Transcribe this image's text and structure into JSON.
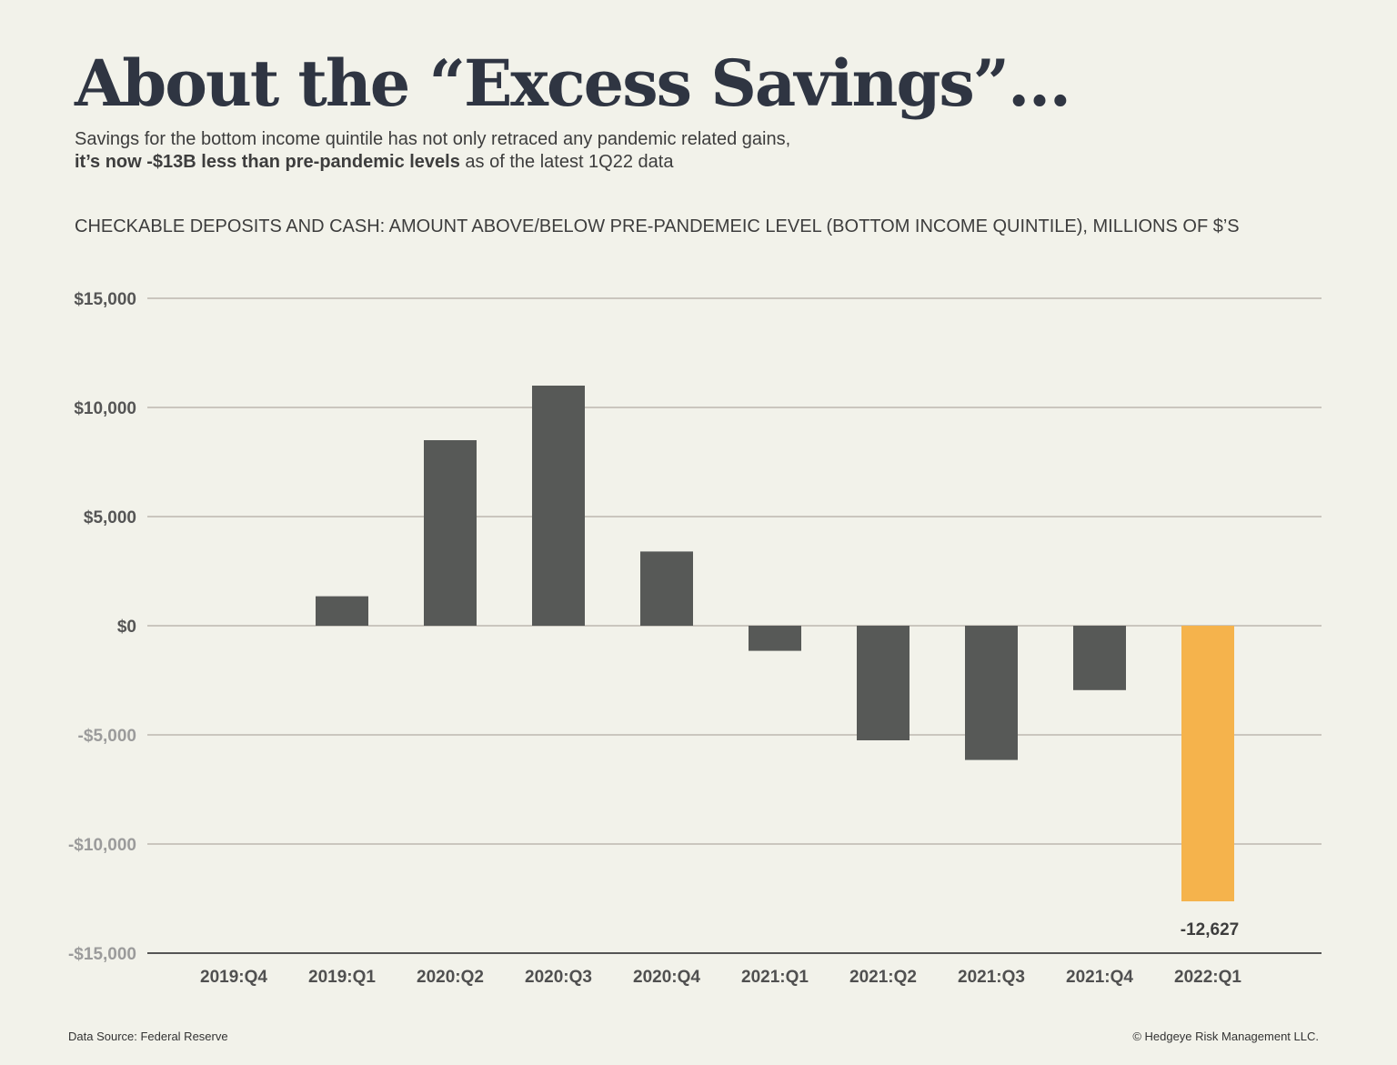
{
  "header": {
    "title": "About the “Excess Savings”…",
    "subtitle_line1": "Savings for the bottom income quintile has not only retraced any pandemic related gains,",
    "subtitle_bold": "it’s now -$13B less than pre-pandemic levels",
    "subtitle_rest": " as of the latest 1Q22 data"
  },
  "chart_heading": "CHECKABLE DEPOSITS AND CASH: AMOUNT ABOVE/BELOW PRE-PANDEMEIC LEVEL (BOTTOM INCOME QUINTILE), MILLIONS OF $’S",
  "chart_data": {
    "type": "bar",
    "categories": [
      "2019:Q4",
      "2019:Q1",
      "2020:Q2",
      "2020:Q3",
      "2020:Q4",
      "2021:Q1",
      "2021:Q2",
      "2021:Q3",
      "2021:Q4",
      "2022:Q1"
    ],
    "values": [
      0,
      1350,
      8500,
      11000,
      3400,
      -1150,
      -5250,
      -6150,
      -2950,
      -12627
    ],
    "ylim": [
      -15000,
      15000
    ],
    "yticks": [
      15000,
      10000,
      5000,
      0,
      -5000,
      -10000,
      -15000
    ],
    "ytick_labels": [
      "$15,000",
      "$10,000",
      "$5,000",
      "$0",
      "-$5,000",
      "-$10,000",
      "-$15,000"
    ],
    "highlight_index": 9,
    "data_labels": [
      {
        "index": 9,
        "text": "-12,627"
      }
    ],
    "grid": true,
    "colors": {
      "bar": "#575957",
      "highlight": "#f5b34c",
      "grid": "#b3aca5",
      "axis": "#555555",
      "tick_positive": "#555555",
      "tick_negative": "#9b9b9b"
    }
  },
  "footer": {
    "source": "Data Source: Federal Reserve",
    "copyright": "© Hedgeye Risk Management LLC."
  }
}
